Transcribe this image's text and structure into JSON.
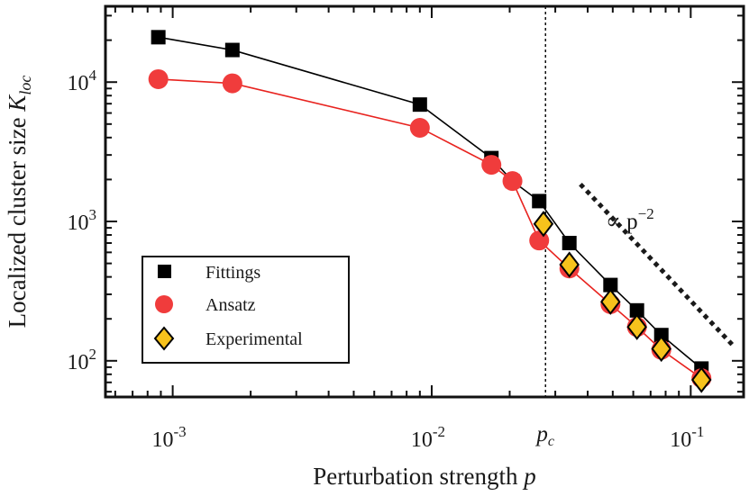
{
  "chart_data": {
    "type": "scatter",
    "title": "",
    "xlabel": "Perturbation strength p",
    "ylabel": "Localized cluster size K_loc",
    "xscale": "log",
    "yscale": "log",
    "xlim": [
      0.00055,
      0.16
    ],
    "ylim": [
      55,
      35000
    ],
    "grid": false,
    "legend": "bottom-left",
    "x_ticks": [
      {
        "value": 0.001,
        "base": "10",
        "exp": "-3"
      },
      {
        "value": 0.01,
        "base": "10",
        "exp": "-2"
      },
      {
        "value": 0.1,
        "base": "10",
        "exp": "-1"
      }
    ],
    "y_ticks": [
      {
        "value": 100,
        "base": "10",
        "exp": "2"
      },
      {
        "value": 1000,
        "base": "10",
        "exp": "3"
      },
      {
        "value": 10000,
        "base": "10",
        "exp": "4"
      }
    ],
    "series": [
      {
        "name": "Fittings",
        "marker": "square",
        "color": "#000000",
        "line_color": "#000000",
        "x": [
          0.00088,
          0.0017,
          0.009,
          0.017,
          0.0205,
          0.026,
          0.034,
          0.049,
          0.062,
          0.077,
          0.11
        ],
        "y": [
          21000,
          17000,
          6900,
          2850,
          1950,
          1400,
          700,
          350,
          230,
          153,
          88
        ]
      },
      {
        "name": "Ansatz",
        "marker": "circle",
        "color": "#f03c3c",
        "line_color": "#e8231f",
        "x": [
          0.00088,
          0.0017,
          0.009,
          0.017,
          0.0205,
          0.026,
          0.034,
          0.049,
          0.062,
          0.077,
          0.11
        ],
        "y": [
          10500,
          9800,
          4700,
          2550,
          1950,
          730,
          460,
          255,
          175,
          120,
          75
        ]
      },
      {
        "name": "Experimental",
        "marker": "diamond",
        "color": "#f7c21c",
        "edge_color": "#000000",
        "x": [
          0.027,
          0.034,
          0.049,
          0.062,
          0.077,
          0.11
        ],
        "y": [
          960,
          490,
          265,
          175,
          122,
          73
        ]
      }
    ],
    "annotations": {
      "pc": {
        "x": 0.0275,
        "label": "p",
        "sub": "c"
      },
      "scaling_prefix": "∝ p",
      "scaling_exp": "−2",
      "scaling_line": {
        "x": [
          0.0375,
          0.145
        ],
        "y": [
          1850,
          130
        ]
      }
    }
  },
  "labels": {
    "xlabel_text": "Perturbation strength ",
    "xlabel_var": "p",
    "ylabel_text": "Localized cluster size ",
    "ylabel_var": "K",
    "ylabel_sub": "loc"
  }
}
